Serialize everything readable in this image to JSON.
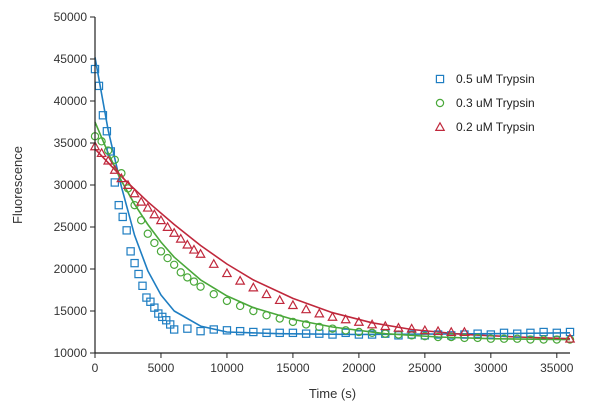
{
  "chart_data": {
    "type": "scatter",
    "title": "",
    "xlabel": "Time (s)",
    "ylabel": "Fluorescence",
    "xlim": [
      0,
      36000
    ],
    "ylim": [
      10000,
      50000
    ],
    "xticks": [
      0,
      5000,
      10000,
      15000,
      20000,
      25000,
      30000,
      35000
    ],
    "yticks": [
      10000,
      15000,
      20000,
      25000,
      30000,
      35000,
      40000,
      45000,
      50000
    ],
    "grid": false,
    "legend": "right",
    "series": [
      {
        "name": "0.5 uM Trypsin",
        "marker": "square",
        "color": "#1f7ec2",
        "x": [
          0,
          300,
          600,
          900,
          1200,
          1500,
          1800,
          2100,
          2400,
          2700,
          3000,
          3300,
          3600,
          3900,
          4200,
          4500,
          4800,
          5100,
          5400,
          5700,
          6000,
          7000,
          8000,
          9000,
          10000,
          11000,
          12000,
          13000,
          14000,
          15000,
          16000,
          17000,
          18000,
          19000,
          20000,
          21000,
          22000,
          23000,
          24000,
          25000,
          26000,
          27000,
          28000,
          29000,
          30000,
          31000,
          32000,
          33000,
          34000,
          35000,
          36000
        ],
        "y": [
          43800,
          41800,
          38300,
          36400,
          34000,
          30300,
          27600,
          26200,
          24600,
          22100,
          20700,
          19400,
          18000,
          16600,
          16100,
          15400,
          14700,
          14300,
          13900,
          13400,
          12800,
          12900,
          12600,
          12800,
          12700,
          12600,
          12500,
          12400,
          12400,
          12400,
          12300,
          12300,
          12200,
          12400,
          12200,
          12200,
          12300,
          12100,
          12200,
          12100,
          12200,
          12100,
          12200,
          12300,
          12200,
          12400,
          12300,
          12400,
          12500,
          12400,
          12500
        ],
        "fit": [
          [
            0,
            45200
          ],
          [
            1000,
            36500
          ],
          [
            2000,
            29800
          ],
          [
            3000,
            24000
          ],
          [
            4000,
            19800
          ],
          [
            5000,
            16900
          ],
          [
            6000,
            15000
          ],
          [
            8000,
            13200
          ],
          [
            10000,
            12500
          ],
          [
            14000,
            12300
          ],
          [
            20000,
            12200
          ],
          [
            30000,
            12300
          ],
          [
            36000,
            12400
          ]
        ]
      },
      {
        "name": "0.3 uM Trypsin",
        "marker": "circle",
        "color": "#4aa83a",
        "x": [
          0,
          500,
          1000,
          1500,
          2000,
          2500,
          3000,
          3500,
          4000,
          4500,
          5000,
          5500,
          6000,
          6500,
          7000,
          7500,
          8000,
          9000,
          10000,
          11000,
          12000,
          13000,
          14000,
          15000,
          16000,
          17000,
          18000,
          19000,
          20000,
          21000,
          22000,
          23000,
          24000,
          25000,
          26000,
          27000,
          28000,
          29000,
          30000,
          31000,
          32000,
          33000,
          34000,
          35000,
          36000
        ],
        "y": [
          35800,
          35200,
          34100,
          33000,
          31400,
          29600,
          27600,
          25800,
          24200,
          23100,
          22100,
          21300,
          20500,
          19600,
          19000,
          18500,
          17900,
          17000,
          16200,
          15600,
          15000,
          14500,
          14100,
          13700,
          13400,
          13100,
          12900,
          12700,
          12500,
          12400,
          12300,
          12200,
          12100,
          12000,
          11900,
          11900,
          11800,
          11800,
          11700,
          11700,
          11700,
          11600,
          11600,
          11600,
          11600
        ],
        "fit": [
          [
            0,
            37500
          ],
          [
            1000,
            33800
          ],
          [
            2000,
            30500
          ],
          [
            3000,
            27700
          ],
          [
            4000,
            25300
          ],
          [
            5000,
            23200
          ],
          [
            6000,
            21400
          ],
          [
            8000,
            18700
          ],
          [
            10000,
            16800
          ],
          [
            12000,
            15400
          ],
          [
            15000,
            14000
          ],
          [
            18000,
            13100
          ],
          [
            22000,
            12300
          ],
          [
            26000,
            11900
          ],
          [
            30000,
            11700
          ],
          [
            36000,
            11600
          ]
        ]
      },
      {
        "name": "0.2 uM Trypsin",
        "marker": "triangle",
        "color": "#c0283c",
        "x": [
          0,
          500,
          1000,
          1500,
          2000,
          2500,
          3000,
          3500,
          4000,
          4500,
          5000,
          5500,
          6000,
          6500,
          7000,
          7500,
          8000,
          9000,
          10000,
          11000,
          12000,
          13000,
          14000,
          15000,
          16000,
          17000,
          18000,
          19000,
          20000,
          21000,
          22000,
          23000,
          24000,
          25000,
          26000,
          27000,
          28000,
          36000
        ],
        "y": [
          34600,
          33800,
          32900,
          31800,
          30800,
          30000,
          29000,
          28000,
          27300,
          26500,
          25800,
          25000,
          24300,
          23600,
          22900,
          22300,
          21800,
          20600,
          19500,
          18600,
          17800,
          17000,
          16300,
          15700,
          15200,
          14700,
          14300,
          14000,
          13700,
          13400,
          13200,
          13000,
          12900,
          12700,
          12600,
          12500,
          12500,
          11700
        ],
        "fit": [
          [
            0,
            34300
          ],
          [
            2000,
            31000
          ],
          [
            4000,
            28000
          ],
          [
            6000,
            25300
          ],
          [
            8000,
            22800
          ],
          [
            10000,
            20600
          ],
          [
            12000,
            18700
          ],
          [
            15000,
            16500
          ],
          [
            18000,
            14800
          ],
          [
            21000,
            13600
          ],
          [
            24000,
            12800
          ],
          [
            28000,
            12200
          ],
          [
            32000,
            11900
          ],
          [
            36000,
            11700
          ]
        ]
      }
    ]
  }
}
